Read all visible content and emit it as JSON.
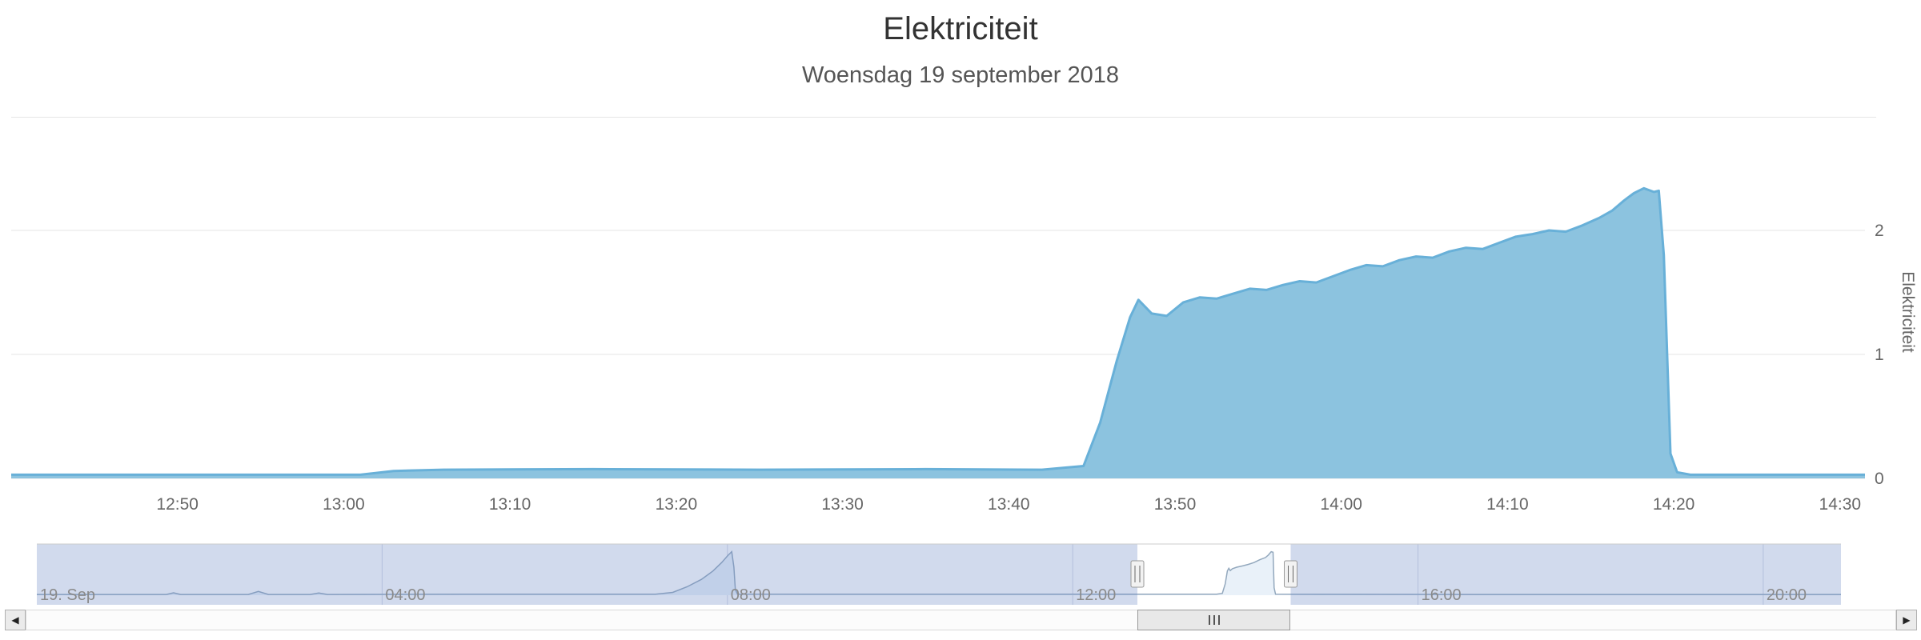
{
  "header": {
    "title": "Elektriciteit",
    "subtitle": "Woensdag 19 september 2018"
  },
  "colors": {
    "series_fill": "#8cc3df",
    "series_line": "#68b0d8",
    "grid": "#e6e6e6",
    "axis_label": "#666666",
    "navigator_mask": "rgba(102,133,194,0.3)",
    "navigator_series_fill": "#e9f1f9",
    "navigator_series_line": "#93a8bd",
    "navigator_grid": "rgba(100,115,170,0.28)",
    "navigator_label": "#8a8a8a",
    "navigator_outline": "#cccccc"
  },
  "scrollbar": {
    "left_arrow": "◀",
    "right_arrow": "▶",
    "grip_icon": "triple-bar"
  },
  "chart_data": {
    "type": "area",
    "title": "Elektriciteit",
    "subtitle": "Woensdag 19 september 2018",
    "legend": false,
    "grid": true,
    "x_axis": {
      "unit": "time, points encoded as minutes since 00:00",
      "visible_range": [
        "12:40",
        "14:32"
      ],
      "lim_minutes": [
        760,
        871.5
      ],
      "ticks": [
        "12:50",
        "13:00",
        "13:10",
        "13:20",
        "13:30",
        "13:40",
        "13:50",
        "14:00",
        "14:10",
        "14:20",
        "14:30"
      ]
    },
    "y_axis": {
      "title": "Elektriciteit",
      "side": "right",
      "ticks": [
        0,
        1,
        2
      ],
      "lim": [
        0,
        2.6
      ]
    },
    "series": [
      {
        "name": "Elektriciteit",
        "points": [
          [
            760,
            0.03
          ],
          [
            781,
            0.03
          ],
          [
            783,
            0.06
          ],
          [
            786,
            0.07
          ],
          [
            795,
            0.075
          ],
          [
            805,
            0.07
          ],
          [
            815,
            0.075
          ],
          [
            822,
            0.07
          ],
          [
            824.5,
            0.1
          ],
          [
            825.5,
            0.45
          ],
          [
            826.5,
            0.95
          ],
          [
            827.3,
            1.3
          ],
          [
            827.8,
            1.44
          ],
          [
            828.6,
            1.33
          ],
          [
            829.5,
            1.31
          ],
          [
            830.5,
            1.42
          ],
          [
            831.5,
            1.46
          ],
          [
            832.5,
            1.45
          ],
          [
            833.5,
            1.49
          ],
          [
            834.5,
            1.53
          ],
          [
            835.5,
            1.52
          ],
          [
            836.5,
            1.56
          ],
          [
            837.5,
            1.59
          ],
          [
            838.5,
            1.58
          ],
          [
            839.5,
            1.63
          ],
          [
            840.5,
            1.68
          ],
          [
            841.5,
            1.72
          ],
          [
            842.5,
            1.71
          ],
          [
            843.5,
            1.76
          ],
          [
            844.5,
            1.79
          ],
          [
            845.5,
            1.78
          ],
          [
            846.5,
            1.83
          ],
          [
            847.5,
            1.86
          ],
          [
            848.5,
            1.85
          ],
          [
            849.5,
            1.9
          ],
          [
            850.5,
            1.95
          ],
          [
            851.5,
            1.97
          ],
          [
            852.5,
            2.0
          ],
          [
            853.5,
            1.99
          ],
          [
            854.5,
            2.04
          ],
          [
            855.5,
            2.1
          ],
          [
            856.3,
            2.16
          ],
          [
            857,
            2.24
          ],
          [
            857.6,
            2.3
          ],
          [
            858.2,
            2.34
          ],
          [
            858.8,
            2.31
          ],
          [
            859.1,
            2.32
          ],
          [
            859.4,
            1.8
          ],
          [
            859.8,
            0.2
          ],
          [
            860.2,
            0.05
          ],
          [
            861,
            0.03
          ],
          [
            871.5,
            0.03
          ]
        ]
      }
    ],
    "navigator": {
      "lim_minutes": [
        0,
        1254
      ],
      "window_minutes": [
        765,
        871.5
      ],
      "value_max": 2.4,
      "labels": [
        {
          "text": "19. Sep",
          "t": 0
        },
        {
          "text": "04:00",
          "t": 240
        },
        {
          "text": "08:00",
          "t": 480
        },
        {
          "text": "12:00",
          "t": 720
        },
        {
          "text": "16:00",
          "t": 960
        },
        {
          "text": "20:00",
          "t": 1200
        }
      ],
      "points": [
        [
          0,
          0.04
        ],
        [
          90,
          0.04
        ],
        [
          95,
          0.13
        ],
        [
          100,
          0.04
        ],
        [
          147,
          0.04
        ],
        [
          154,
          0.2
        ],
        [
          161,
          0.04
        ],
        [
          190,
          0.04
        ],
        [
          196,
          0.12
        ],
        [
          202,
          0.04
        ],
        [
          300,
          0.05
        ],
        [
          430,
          0.05
        ],
        [
          442,
          0.15
        ],
        [
          452,
          0.45
        ],
        [
          462,
          0.85
        ],
        [
          470,
          1.3
        ],
        [
          476,
          1.75
        ],
        [
          480,
          2.1
        ],
        [
          483,
          2.33
        ],
        [
          484.5,
          1.5
        ],
        [
          485.5,
          0.3
        ],
        [
          487,
          0.06
        ],
        [
          600,
          0.05
        ],
        [
          780,
          0.05
        ],
        [
          820,
          0.05
        ],
        [
          824,
          0.1
        ],
        [
          826,
          0.6
        ],
        [
          827.5,
          1.3
        ],
        [
          828.5,
          1.44
        ],
        [
          829.5,
          1.32
        ],
        [
          831,
          1.42
        ],
        [
          834,
          1.5
        ],
        [
          838,
          1.57
        ],
        [
          842,
          1.65
        ],
        [
          846,
          1.75
        ],
        [
          850,
          1.9
        ],
        [
          854,
          2.02
        ],
        [
          856,
          2.15
        ],
        [
          858,
          2.33
        ],
        [
          859.3,
          2.3
        ],
        [
          860,
          0.4
        ],
        [
          861,
          0.05
        ],
        [
          1000,
          0.04
        ],
        [
          1254,
          0.04
        ]
      ]
    }
  }
}
